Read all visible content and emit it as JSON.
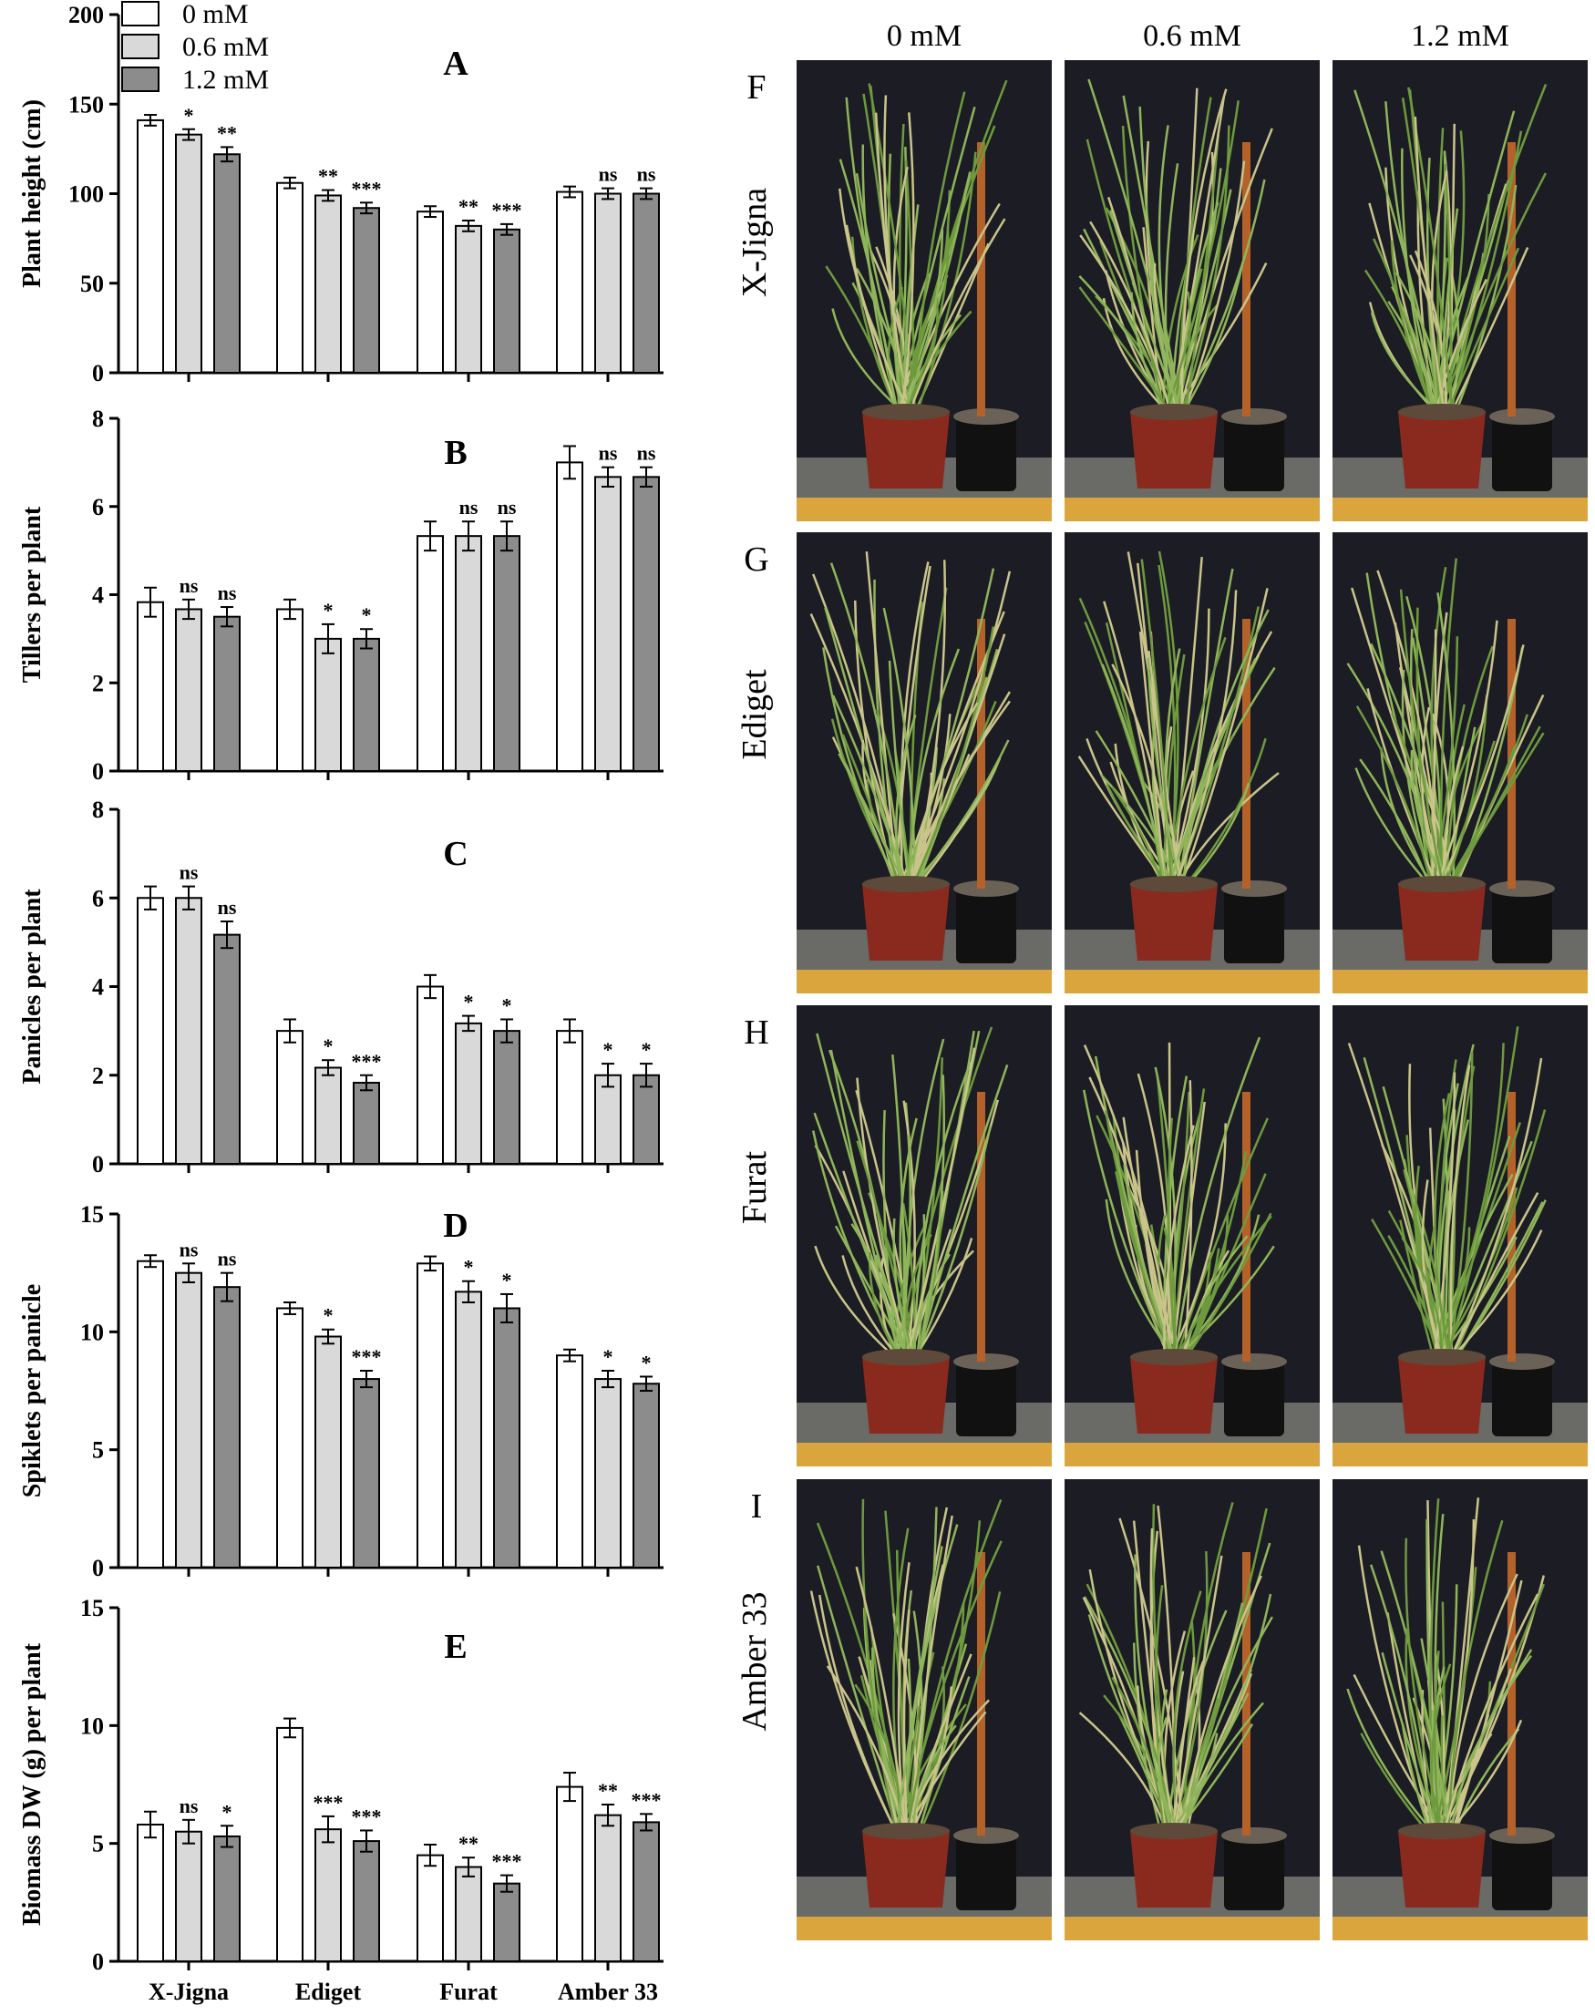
{
  "legend": {
    "items": [
      {
        "label": "0 mM",
        "color": "#ffffff"
      },
      {
        "label": "0.6 mM",
        "color": "#d9d9d9"
      },
      {
        "label": "1.2 mM",
        "color": "#8c8c8c"
      }
    ]
  },
  "chart_data": [
    {
      "type": "bar",
      "panel": "A",
      "ylabel": "Plant height (cm)",
      "categories": [
        "X-Jigna",
        "Ediget",
        "Furat",
        "Amber 33"
      ],
      "ylim": [
        0,
        200
      ],
      "yticks": [
        "0",
        "50",
        "100",
        "150",
        "200"
      ],
      "series": [
        {
          "name": "0 mM",
          "values": [
            141,
            106,
            90,
            101
          ],
          "errors": [
            3,
            3,
            3,
            3
          ],
          "sig": [
            "",
            "",
            "",
            ""
          ]
        },
        {
          "name": "0.6 mM",
          "values": [
            133,
            99,
            82,
            100
          ],
          "errors": [
            3,
            3,
            3,
            3
          ],
          "sig": [
            "*",
            "**",
            "**",
            "ns"
          ]
        },
        {
          "name": "1.2 mM",
          "values": [
            122,
            92,
            80,
            100
          ],
          "errors": [
            4,
            3,
            3,
            3
          ],
          "sig": [
            "**",
            "***",
            "***",
            "ns"
          ]
        }
      ]
    },
    {
      "type": "bar",
      "panel": "B",
      "ylabel": "Tillers per plant",
      "categories": [
        "X-Jigna",
        "Ediget",
        "Furat",
        "Amber 33"
      ],
      "ylim": [
        0,
        8
      ],
      "yticks": [
        "0",
        "2",
        "4",
        "6",
        "8"
      ],
      "series": [
        {
          "name": "0 mM",
          "values": [
            3.83,
            3.67,
            5.33,
            7.0
          ],
          "errors": [
            0.33,
            0.22,
            0.33,
            0.37
          ],
          "sig": [
            "",
            "",
            "",
            ""
          ]
        },
        {
          "name": "0.6 mM",
          "values": [
            3.67,
            3.0,
            5.33,
            6.67
          ],
          "errors": [
            0.22,
            0.33,
            0.33,
            0.22
          ],
          "sig": [
            "ns",
            "*",
            "ns",
            "ns"
          ]
        },
        {
          "name": "1.2 mM",
          "values": [
            3.5,
            3.0,
            5.33,
            6.67
          ],
          "errors": [
            0.22,
            0.22,
            0.33,
            0.22
          ],
          "sig": [
            "ns",
            "*",
            "ns",
            "ns"
          ]
        }
      ]
    },
    {
      "type": "bar",
      "panel": "C",
      "ylabel": "Panicles per plant",
      "categories": [
        "X-Jigna",
        "Ediget",
        "Furat",
        "Amber 33"
      ],
      "ylim": [
        0,
        8
      ],
      "yticks": [
        "0",
        "2",
        "4",
        "6",
        "8"
      ],
      "series": [
        {
          "name": "0 mM",
          "values": [
            6.0,
            3.0,
            4.0,
            3.0
          ],
          "errors": [
            0.26,
            0.26,
            0.26,
            0.26
          ],
          "sig": [
            "",
            "",
            "",
            ""
          ]
        },
        {
          "name": "0.6 mM",
          "values": [
            6.0,
            2.17,
            3.17,
            2.0
          ],
          "errors": [
            0.26,
            0.17,
            0.17,
            0.26
          ],
          "sig": [
            "ns",
            "*",
            "*",
            "*"
          ]
        },
        {
          "name": "1.2 mM",
          "values": [
            5.17,
            1.83,
            3.0,
            2.0
          ],
          "errors": [
            0.3,
            0.17,
            0.26,
            0.26
          ],
          "sig": [
            "ns",
            "***",
            "*",
            "*"
          ]
        }
      ]
    },
    {
      "type": "bar",
      "panel": "D",
      "ylabel": "Spiklets per panicle",
      "categories": [
        "X-Jigna",
        "Ediget",
        "Furat",
        "Amber 33"
      ],
      "ylim": [
        0,
        15
      ],
      "yticks": [
        "0",
        "5",
        "10",
        "15"
      ],
      "series": [
        {
          "name": "0 mM",
          "values": [
            13.0,
            11.0,
            12.9,
            9.0
          ],
          "errors": [
            0.25,
            0.25,
            0.3,
            0.25
          ],
          "sig": [
            "",
            "",
            "",
            ""
          ]
        },
        {
          "name": "0.6 mM",
          "values": [
            12.5,
            9.8,
            11.7,
            8.0
          ],
          "errors": [
            0.4,
            0.3,
            0.45,
            0.35
          ],
          "sig": [
            "ns",
            "*",
            "*",
            "*"
          ]
        },
        {
          "name": "1.2 mM",
          "values": [
            11.9,
            8.0,
            11.0,
            7.8
          ],
          "errors": [
            0.6,
            0.35,
            0.6,
            0.3
          ],
          "sig": [
            "ns",
            "***",
            "*",
            "*"
          ]
        }
      ]
    },
    {
      "type": "bar",
      "panel": "E",
      "ylabel": "Biomass DW (g) per plant",
      "categories": [
        "X-Jigna",
        "Ediget",
        "Furat",
        "Amber 33"
      ],
      "ylim": [
        0,
        15
      ],
      "yticks": [
        "0",
        "5",
        "10",
        "15"
      ],
      "series": [
        {
          "name": "0 mM",
          "values": [
            5.8,
            9.9,
            4.5,
            7.4
          ],
          "errors": [
            0.55,
            0.4,
            0.45,
            0.6
          ],
          "sig": [
            "",
            "",
            "",
            ""
          ]
        },
        {
          "name": "0.6 mM",
          "values": [
            5.5,
            5.6,
            4.0,
            6.2
          ],
          "errors": [
            0.5,
            0.55,
            0.4,
            0.45
          ],
          "sig": [
            "ns",
            "***",
            "**",
            "**"
          ]
        },
        {
          "name": "1.2 mM",
          "values": [
            5.3,
            5.1,
            3.3,
            5.9
          ],
          "errors": [
            0.45,
            0.45,
            0.35,
            0.35
          ],
          "sig": [
            "*",
            "***",
            "***",
            "***"
          ]
        }
      ]
    }
  ],
  "photos": {
    "columns": [
      "0 mM",
      "0.6 mM",
      "1.2 mM"
    ],
    "rows": [
      {
        "panel": "F",
        "label": "X-Jigna"
      },
      {
        "panel": "G",
        "label": "Ediget"
      },
      {
        "panel": "H",
        "label": "Furat"
      },
      {
        "panel": "I",
        "label": "Amber 33"
      }
    ]
  }
}
